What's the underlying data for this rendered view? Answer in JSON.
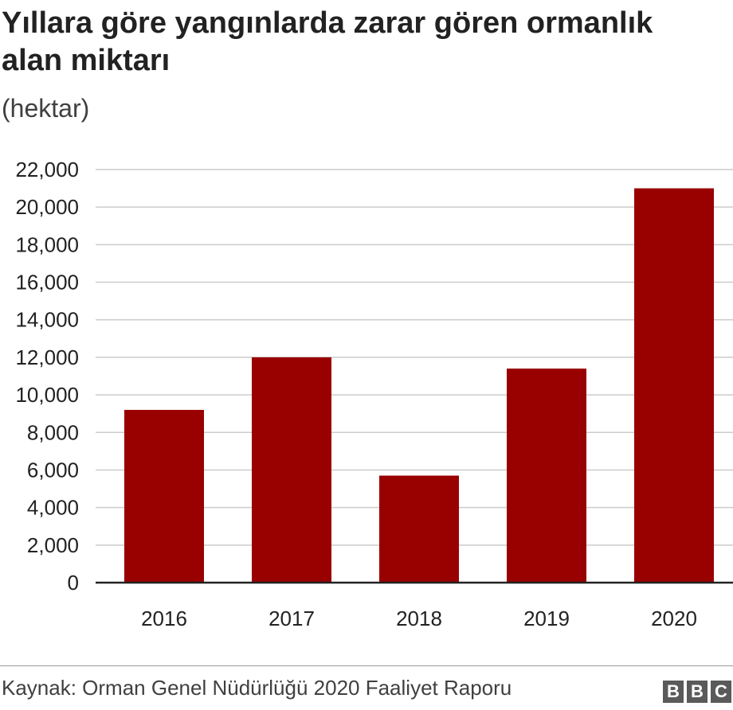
{
  "title": "Yıllara göre yangınlarda zarar gören ormanlık alan miktarı",
  "subtitle": "(hektar)",
  "source": "Kaynak: Orman Genel Nüdürlüğü 2020 Faaliyet Raporu",
  "logo": [
    "B",
    "B",
    "C"
  ],
  "colors": {
    "bar": "#990000",
    "grid": "#cccccc",
    "axis": "#222222",
    "text": "#222222"
  },
  "chart_data": {
    "type": "bar",
    "categories": [
      "2016",
      "2017",
      "2018",
      "2019",
      "2020"
    ],
    "values": [
      9200,
      12000,
      5700,
      11400,
      21000
    ],
    "ylim": [
      0,
      22000
    ],
    "yticks": [
      0,
      2000,
      4000,
      6000,
      8000,
      10000,
      12000,
      14000,
      16000,
      18000,
      20000,
      22000
    ],
    "ytick_labels": [
      "0",
      "2,000",
      "4,000",
      "6,000",
      "8,000",
      "10,000",
      "12,000",
      "14,000",
      "16,000",
      "18,000",
      "20,000",
      "22,000"
    ],
    "grid": true
  }
}
